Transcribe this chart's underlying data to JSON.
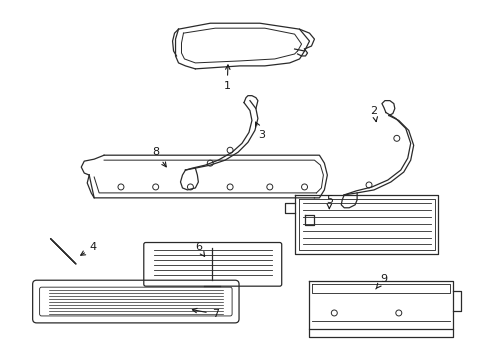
{
  "background_color": "#ffffff",
  "line_color": "#2a2a2a",
  "label_color": "#1a1a1a",
  "figsize": [
    4.89,
    3.6
  ],
  "dpi": 100
}
